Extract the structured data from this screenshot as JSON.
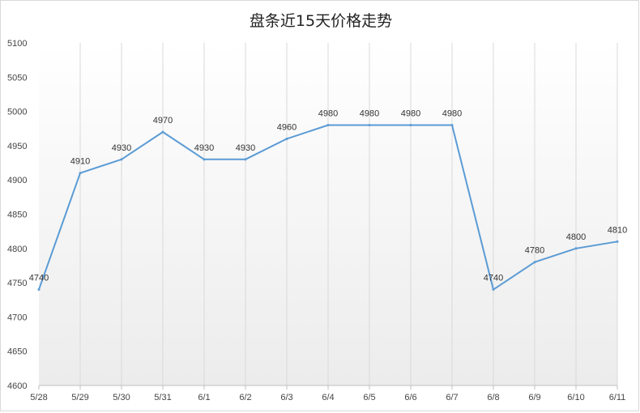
{
  "chart_data": {
    "type": "line",
    "title": "盘条近15天价格走势",
    "xlabel": "",
    "ylabel": "",
    "categories": [
      "5/28",
      "5/29",
      "5/30",
      "5/31",
      "6/1",
      "6/2",
      "6/3",
      "6/4",
      "6/5",
      "6/6",
      "6/7",
      "6/8",
      "6/9",
      "6/10",
      "6/11"
    ],
    "series": [
      {
        "values": [
          4740,
          4910,
          4930,
          4970,
          4930,
          4930,
          4960,
          4980,
          4980,
          4980,
          4980,
          4740,
          4780,
          4800,
          4810
        ],
        "color": "#5b9bd5"
      }
    ],
    "ylim": [
      4600,
      5100
    ],
    "yticks": [
      4600,
      4650,
      4700,
      4750,
      4800,
      4850,
      4900,
      4950,
      5000,
      5050,
      5100
    ],
    "grid": "vertical",
    "data_labels": true,
    "plot_background": "gradient light gray"
  }
}
